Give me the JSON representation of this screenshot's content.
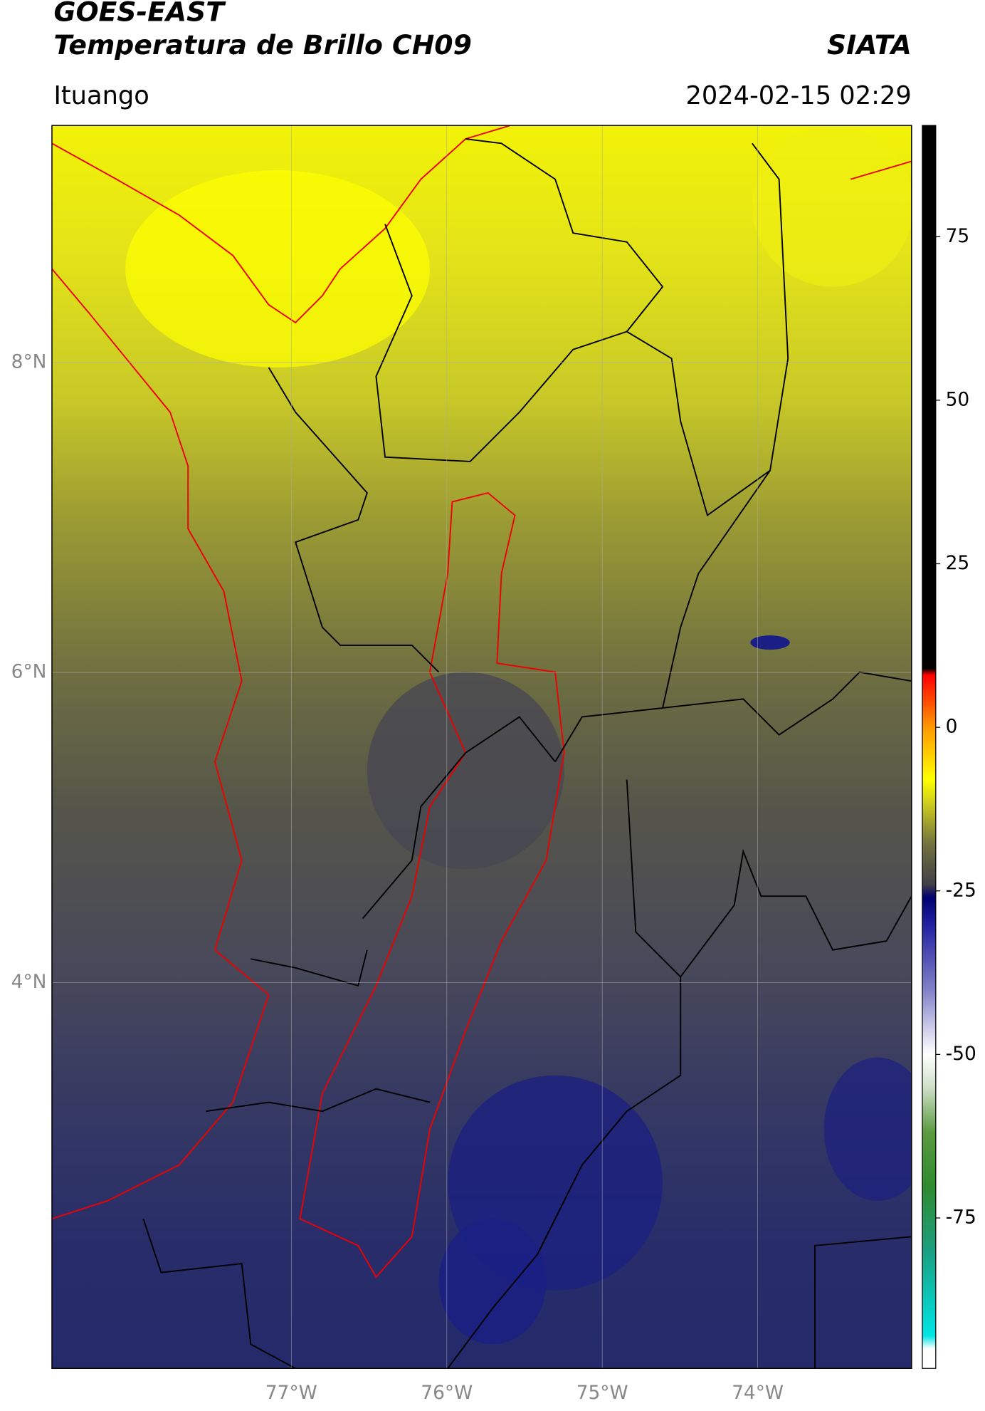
{
  "header": {
    "title": "GOES-EAST",
    "subtitle": "Temperatura de Brillo CH09",
    "brand": "SIATA",
    "location": "Ituango",
    "datetime": "2024-02-15 02:29"
  },
  "map": {
    "xlim": [
      -78.54,
      -73.01
    ],
    "ylim": [
      1.51,
      9.53
    ],
    "xticks": [
      {
        "value": -77,
        "label": "77°W"
      },
      {
        "value": -76,
        "label": "76°W"
      },
      {
        "value": -75,
        "label": "75°W"
      },
      {
        "value": -74,
        "label": "74°W"
      }
    ],
    "yticks": [
      {
        "value": 8,
        "label": "8°N"
      },
      {
        "value": 6,
        "label": "6°N"
      },
      {
        "value": 4,
        "label": "4°N"
      }
    ],
    "grid": true
  },
  "colorbar": {
    "lim": [
      -98,
      92
    ],
    "ticks": [
      75,
      50,
      25,
      0,
      -25,
      -50,
      -75
    ],
    "stops": [
      [
        -98,
        "#ffffff"
      ],
      [
        -95,
        "#ffffff"
      ],
      [
        -93,
        "#00e5e5"
      ],
      [
        -80,
        "#1aa080"
      ],
      [
        -70,
        "#2e8b2e"
      ],
      [
        -62,
        "#5a9a40"
      ],
      [
        -55,
        "#cfe0c8"
      ],
      [
        -50,
        "#ffffff"
      ],
      [
        -40,
        "#8080c8"
      ],
      [
        -30,
        "#2020a0"
      ],
      [
        -26,
        "#000070"
      ],
      [
        -24,
        "#404048"
      ],
      [
        -18,
        "#707040"
      ],
      [
        -12,
        "#c8c820"
      ],
      [
        -8,
        "#ffff00"
      ],
      [
        0,
        "#ff9900"
      ],
      [
        8,
        "#ff0000"
      ],
      [
        9,
        "#000000"
      ],
      [
        92,
        "#000000"
      ]
    ]
  }
}
